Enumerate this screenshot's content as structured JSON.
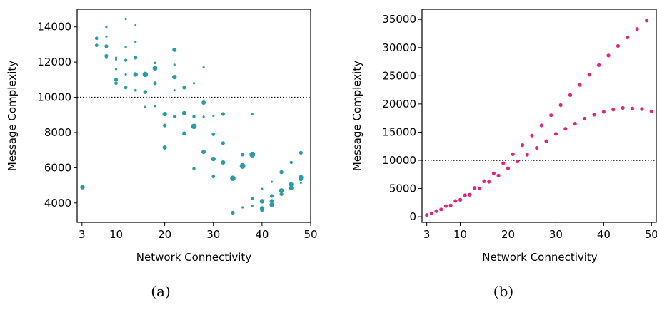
{
  "figure_captions": [
    "(a)",
    "(b)"
  ],
  "colors": {
    "teal": "#2a9ca8",
    "pink": "#e0257e",
    "axis": "#000000",
    "refline": "#000000"
  },
  "chart_data": [
    {
      "type": "scatter",
      "caption": "(a)",
      "xlabel": "Network Connectivity",
      "ylabel": "Message Complexity",
      "xlim": [
        2,
        50
      ],
      "ylim": [
        2900,
        15000
      ],
      "xticks": [
        3,
        10,
        20,
        30,
        40,
        50
      ],
      "yticks": [
        4000,
        6000,
        8000,
        10000,
        12000,
        14000
      ],
      "reference_line": {
        "y": 10000,
        "style": "dotted"
      },
      "color": "#2a9ca8",
      "points": [
        {
          "x": 3.1,
          "y": 4900,
          "s": 3.2
        },
        {
          "x": 6,
          "y": 13350,
          "s": 2.4
        },
        {
          "x": 6,
          "y": 12950,
          "s": 2.4
        },
        {
          "x": 8,
          "y": 14000,
          "s": 1.6
        },
        {
          "x": 8,
          "y": 13450,
          "s": 1.6
        },
        {
          "x": 8,
          "y": 12900,
          "s": 2.6
        },
        {
          "x": 8,
          "y": 12350,
          "s": 2.6
        },
        {
          "x": 8,
          "y": 12250,
          "s": 1.8
        },
        {
          "x": 10,
          "y": 12250,
          "s": 1.6
        },
        {
          "x": 10,
          "y": 12150,
          "s": 1.6
        },
        {
          "x": 10,
          "y": 11600,
          "s": 1.6
        },
        {
          "x": 10,
          "y": 11000,
          "s": 2.6
        },
        {
          "x": 10,
          "y": 10800,
          "s": 2.4
        },
        {
          "x": 12,
          "y": 14450,
          "s": 1.6
        },
        {
          "x": 12,
          "y": 12850,
          "s": 1.6
        },
        {
          "x": 12,
          "y": 12100,
          "s": 2.2
        },
        {
          "x": 12,
          "y": 11300,
          "s": 1.6
        },
        {
          "x": 12,
          "y": 10550,
          "s": 2.4
        },
        {
          "x": 14,
          "y": 14100,
          "s": 1.4
        },
        {
          "x": 14,
          "y": 13150,
          "s": 1.6
        },
        {
          "x": 14,
          "y": 12250,
          "s": 2.6
        },
        {
          "x": 14,
          "y": 11300,
          "s": 3.2
        },
        {
          "x": 14,
          "y": 10400,
          "s": 1.8
        },
        {
          "x": 16,
          "y": 11300,
          "s": 3.8
        },
        {
          "x": 16,
          "y": 10300,
          "s": 2.8
        },
        {
          "x": 16,
          "y": 9450,
          "s": 1.6
        },
        {
          "x": 18,
          "y": 11950,
          "s": 1.8
        },
        {
          "x": 18,
          "y": 11650,
          "s": 3.4
        },
        {
          "x": 18,
          "y": 10800,
          "s": 2.6
        },
        {
          "x": 18,
          "y": 9500,
          "s": 1.6
        },
        {
          "x": 20,
          "y": 9050,
          "s": 3.2
        },
        {
          "x": 20,
          "y": 8400,
          "s": 2.6
        },
        {
          "x": 20,
          "y": 7150,
          "s": 3.0
        },
        {
          "x": 22,
          "y": 12700,
          "s": 3.0
        },
        {
          "x": 22,
          "y": 11850,
          "s": 1.6
        },
        {
          "x": 22,
          "y": 11150,
          "s": 3.2
        },
        {
          "x": 22,
          "y": 10400,
          "s": 1.6
        },
        {
          "x": 22,
          "y": 8900,
          "s": 2.2
        },
        {
          "x": 24,
          "y": 10550,
          "s": 2.6
        },
        {
          "x": 24,
          "y": 9100,
          "s": 3.0
        },
        {
          "x": 24,
          "y": 7950,
          "s": 2.8
        },
        {
          "x": 26,
          "y": 10800,
          "s": 1.6
        },
        {
          "x": 26,
          "y": 8900,
          "s": 2.2
        },
        {
          "x": 26,
          "y": 8350,
          "s": 3.8
        },
        {
          "x": 26,
          "y": 5950,
          "s": 2.2
        },
        {
          "x": 28,
          "y": 11700,
          "s": 1.6
        },
        {
          "x": 28,
          "y": 9700,
          "s": 3.0
        },
        {
          "x": 28,
          "y": 8900,
          "s": 1.6
        },
        {
          "x": 28,
          "y": 6900,
          "s": 3.0
        },
        {
          "x": 30,
          "y": 8950,
          "s": 1.6
        },
        {
          "x": 30,
          "y": 7900,
          "s": 2.4
        },
        {
          "x": 30,
          "y": 6500,
          "s": 3.2
        },
        {
          "x": 30,
          "y": 5500,
          "s": 2.4
        },
        {
          "x": 32,
          "y": 9050,
          "s": 2.6
        },
        {
          "x": 32,
          "y": 7400,
          "s": 2.6
        },
        {
          "x": 32,
          "y": 6300,
          "s": 3.0
        },
        {
          "x": 34,
          "y": 5400,
          "s": 3.8
        },
        {
          "x": 34,
          "y": 3450,
          "s": 2.6
        },
        {
          "x": 36,
          "y": 6750,
          "s": 2.6
        },
        {
          "x": 36,
          "y": 6100,
          "s": 4.0
        },
        {
          "x": 36,
          "y": 3750,
          "s": 1.6
        },
        {
          "x": 38,
          "y": 9050,
          "s": 1.6
        },
        {
          "x": 38,
          "y": 6750,
          "s": 4.0
        },
        {
          "x": 38,
          "y": 4250,
          "s": 2.2
        },
        {
          "x": 38,
          "y": 3850,
          "s": 1.6
        },
        {
          "x": 40,
          "y": 4800,
          "s": 1.6
        },
        {
          "x": 40,
          "y": 4100,
          "s": 3.2
        },
        {
          "x": 40,
          "y": 3700,
          "s": 3.0
        },
        {
          "x": 40,
          "y": 3600,
          "s": 2.6
        },
        {
          "x": 42,
          "y": 5200,
          "s": 1.6
        },
        {
          "x": 42,
          "y": 4400,
          "s": 2.6
        },
        {
          "x": 42,
          "y": 4100,
          "s": 3.0
        },
        {
          "x": 42,
          "y": 3900,
          "s": 3.2
        },
        {
          "x": 44,
          "y": 5750,
          "s": 2.8
        },
        {
          "x": 44,
          "y": 4700,
          "s": 3.4
        },
        {
          "x": 44,
          "y": 4500,
          "s": 2.6
        },
        {
          "x": 46,
          "y": 6300,
          "s": 2.2
        },
        {
          "x": 46,
          "y": 5050,
          "s": 3.2
        },
        {
          "x": 46,
          "y": 4850,
          "s": 3.2
        },
        {
          "x": 48,
          "y": 6850,
          "s": 2.6
        },
        {
          "x": 48,
          "y": 5450,
          "s": 3.4
        },
        {
          "x": 48,
          "y": 5350,
          "s": 2.8
        },
        {
          "x": 48,
          "y": 5150,
          "s": 1.6
        }
      ]
    },
    {
      "type": "scatter",
      "caption": "(b)",
      "xlabel": "Network Connectivity",
      "ylabel": "Message Complexity",
      "xlim": [
        2,
        51
      ],
      "ylim": [
        -1000,
        36800
      ],
      "xticks": [
        3,
        10,
        20,
        30,
        40,
        50
      ],
      "yticks": [
        0,
        5000,
        10000,
        15000,
        20000,
        25000,
        30000,
        35000
      ],
      "reference_line": {
        "y": 10000,
        "style": "dotted"
      },
      "color": "#e0257e",
      "points": [
        {
          "x": 3,
          "y": 300
        },
        {
          "x": 4,
          "y": 600
        },
        {
          "x": 5,
          "y": 1000
        },
        {
          "x": 6,
          "y": 1300
        },
        {
          "x": 7,
          "y": 1900
        },
        {
          "x": 8,
          "y": 2000
        },
        {
          "x": 9,
          "y": 2800
        },
        {
          "x": 10,
          "y": 3000
        },
        {
          "x": 11,
          "y": 3800
        },
        {
          "x": 12,
          "y": 3900
        },
        {
          "x": 13,
          "y": 5100
        },
        {
          "x": 14,
          "y": 5000
        },
        {
          "x": 15,
          "y": 6300
        },
        {
          "x": 16,
          "y": 6200
        },
        {
          "x": 17,
          "y": 7700
        },
        {
          "x": 18,
          "y": 7300
        },
        {
          "x": 19,
          "y": 9500
        },
        {
          "x": 20,
          "y": 8600
        },
        {
          "x": 21,
          "y": 11100
        },
        {
          "x": 22,
          "y": 9800
        },
        {
          "x": 23,
          "y": 12700
        },
        {
          "x": 24,
          "y": 11000
        },
        {
          "x": 25,
          "y": 14400
        },
        {
          "x": 26,
          "y": 12200
        },
        {
          "x": 27,
          "y": 16200
        },
        {
          "x": 28,
          "y": 13400
        },
        {
          "x": 29,
          "y": 18000
        },
        {
          "x": 30,
          "y": 14700
        },
        {
          "x": 31,
          "y": 19800
        },
        {
          "x": 32,
          "y": 15600
        },
        {
          "x": 33,
          "y": 21600
        },
        {
          "x": 34,
          "y": 16500
        },
        {
          "x": 35,
          "y": 23400
        },
        {
          "x": 36,
          "y": 17400
        },
        {
          "x": 37,
          "y": 25200
        },
        {
          "x": 38,
          "y": 18100
        },
        {
          "x": 39,
          "y": 26900
        },
        {
          "x": 40,
          "y": 18600
        },
        {
          "x": 41,
          "y": 28600
        },
        {
          "x": 42,
          "y": 19000
        },
        {
          "x": 43,
          "y": 30300
        },
        {
          "x": 44,
          "y": 19300
        },
        {
          "x": 45,
          "y": 31800
        },
        {
          "x": 46,
          "y": 19200
        },
        {
          "x": 47,
          "y": 33300
        },
        {
          "x": 48,
          "y": 19100
        },
        {
          "x": 49,
          "y": 34800
        },
        {
          "x": 50,
          "y": 18700
        }
      ]
    }
  ]
}
